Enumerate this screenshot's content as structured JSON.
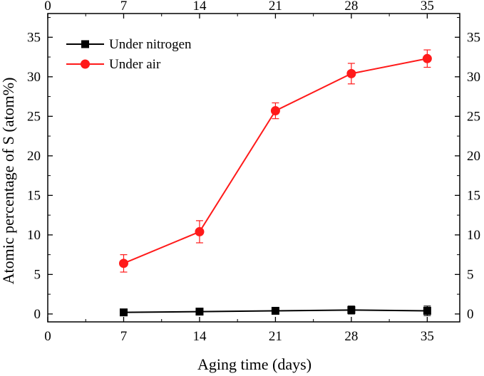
{
  "chart_data": {
    "type": "line",
    "xlabel": "Aging time (days)",
    "ylabel": "Atomic percentage of S (atom%)",
    "xlim": [
      0,
      38
    ],
    "ylim": [
      -1,
      38
    ],
    "xticks": [
      0,
      7,
      14,
      21,
      28,
      35
    ],
    "yticks": [
      0,
      5,
      10,
      15,
      20,
      25,
      30,
      35
    ],
    "top_axis_ticks": [
      0,
      7,
      14,
      21,
      28,
      35
    ],
    "right_axis_ticks": [
      0,
      5,
      10,
      15,
      20,
      25,
      30,
      35
    ],
    "grid": false,
    "legend_position": "top-left",
    "x": [
      7,
      14,
      21,
      28,
      35
    ],
    "series": [
      {
        "name": "Under nitrogen",
        "color": "#000000",
        "marker": "square",
        "values": [
          0.2,
          0.3,
          0.4,
          0.5,
          0.4
        ],
        "errors": [
          0.3,
          0.2,
          0.2,
          0.5,
          0.6
        ]
      },
      {
        "name": "Under air",
        "color": "#ff1a1a",
        "marker": "circle",
        "values": [
          6.4,
          10.4,
          25.7,
          30.4,
          32.3
        ],
        "errors": [
          1.1,
          1.4,
          1.0,
          1.3,
          1.1
        ]
      }
    ]
  }
}
